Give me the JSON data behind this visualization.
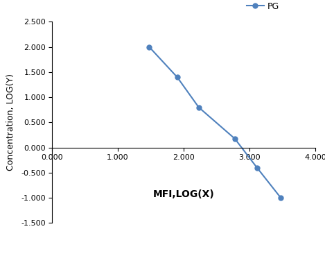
{
  "x": [
    1.477,
    1.903,
    2.23,
    2.778,
    3.114,
    3.477
  ],
  "y": [
    2.0,
    1.398,
    0.799,
    0.176,
    -0.398,
    -1.0
  ],
  "line_color": "#4f81bd",
  "marker_color": "#4f81bd",
  "marker_style": "o",
  "marker_size": 5,
  "line_width": 1.5,
  "xlabel": "MFI,LOG(X)",
  "ylabel": "Concentration, LOG(Y)",
  "legend_label": "PG",
  "xlim": [
    0.0,
    4.0
  ],
  "ylim": [
    -1.5,
    2.5
  ],
  "xticks": [
    0.0,
    1.0,
    2.0,
    3.0,
    4.0
  ],
  "yticks": [
    -1.5,
    -1.0,
    -0.5,
    0.0,
    0.5,
    1.0,
    1.5,
    2.0,
    2.5
  ],
  "xlabel_fontsize": 10,
  "ylabel_fontsize": 9,
  "tick_fontsize": 8,
  "legend_fontsize": 9,
  "background_color": "#ffffff",
  "grid": false
}
